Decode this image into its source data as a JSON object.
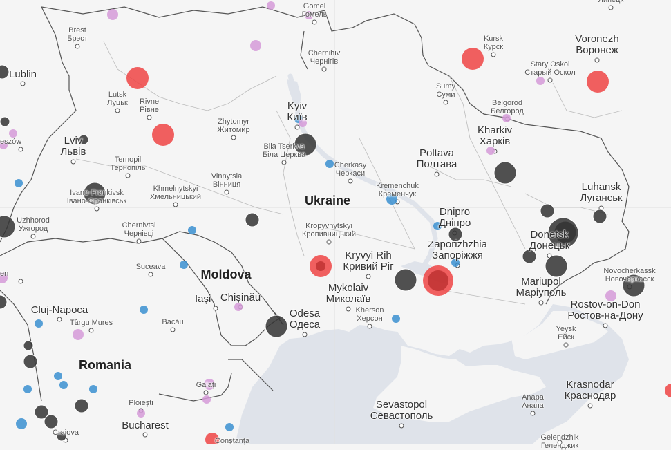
{
  "colors": {
    "land": "#f5f5f5",
    "sea": "#dfe3ea",
    "border": "#555555",
    "red": "#ee4444",
    "dark": "#333333",
    "blue": "#3a8fd0",
    "pink": "#d59ad8"
  },
  "countries": [
    {
      "key": "ukraine",
      "name": "Ukraine"
    },
    {
      "key": "moldova",
      "name": "Moldova"
    },
    {
      "key": "romania",
      "name": "Romania"
    }
  ],
  "cities": [
    {
      "key": "gomel",
      "l1": "Gomel",
      "l2": "Гомель",
      "size": "small"
    },
    {
      "key": "brest",
      "l1": "Brest",
      "l2": "Брэст",
      "size": "small"
    },
    {
      "key": "lublin",
      "l1": "Lublin",
      "l2": "",
      "size": "big"
    },
    {
      "key": "chernihiv",
      "l1": "Chernihiv",
      "l2": "Чернігів",
      "size": "small"
    },
    {
      "key": "kursk",
      "l1": "Kursk",
      "l2": "Курск",
      "size": "small"
    },
    {
      "key": "voronezh",
      "l1": "Voronezh",
      "l2": "Воронеж",
      "size": "big"
    },
    {
      "key": "stary-oskol",
      "l1": "Stary Oskol",
      "l2": "Старый Оскол",
      "size": "small"
    },
    {
      "key": "sumy",
      "l1": "Sumy",
      "l2": "Суми",
      "size": "small"
    },
    {
      "key": "lutsk",
      "l1": "Lutsk",
      "l2": "Луцьк",
      "size": "small"
    },
    {
      "key": "rivne",
      "l1": "Rivne",
      "l2": "Рівне",
      "size": "small"
    },
    {
      "key": "kyiv",
      "l1": "Kyiv",
      "l2": "Київ",
      "size": "big"
    },
    {
      "key": "belgorod",
      "l1": "Belgorod",
      "l2": "Белгород",
      "size": "small"
    },
    {
      "key": "zhytomyr",
      "l1": "Zhytomyr",
      "l2": "Житомир",
      "size": "small"
    },
    {
      "key": "kharkiv",
      "l1": "Kharkiv",
      "l2": "Харків",
      "size": "big"
    },
    {
      "key": "lviv",
      "l1": "Lviv",
      "l2": "Львів",
      "size": "big"
    },
    {
      "key": "bila-tserkva",
      "l1": "Bila Tserkva",
      "l2": "Біла Церква",
      "size": "small"
    },
    {
      "key": "poltava",
      "l1": "Poltava",
      "l2": "Полтава",
      "size": "big"
    },
    {
      "key": "ternopil",
      "l1": "Ternopil",
      "l2": "Тернопіль",
      "size": "small"
    },
    {
      "key": "cherkasy",
      "l1": "Cherkasy",
      "l2": "Черкаси",
      "size": "small"
    },
    {
      "key": "vinnytsia",
      "l1": "Vinnytsia",
      "l2": "Вінниця",
      "size": "small"
    },
    {
      "key": "ivano-frankivsk",
      "l1": "Ivano-Frankivsk",
      "l2": "Івано-Франківськ",
      "size": "small"
    },
    {
      "key": "khmelnytskyi",
      "l1": "Khmelnytskyi",
      "l2": "Хмельницький",
      "size": "small"
    },
    {
      "key": "kremenchuk",
      "l1": "Kremenchuk",
      "l2": "Кременчук",
      "size": "small"
    },
    {
      "key": "luhansk",
      "l1": "Luhansk",
      "l2": "Луганськ",
      "size": "big"
    },
    {
      "key": "dnipro",
      "l1": "Dnipro",
      "l2": "Дніпро",
      "size": "big"
    },
    {
      "key": "uzhhorod",
      "l1": "Uzhhorod",
      "l2": "Ужгород",
      "size": "small"
    },
    {
      "key": "chernivtsi",
      "l1": "Chernivtsi",
      "l2": "Чернівці",
      "size": "small"
    },
    {
      "key": "kropyvnytskyi",
      "l1": "Kropyvnytskyi",
      "l2": "Кропивницький",
      "size": "small"
    },
    {
      "key": "donetsk",
      "l1": "Donetsk",
      "l2": "Донецьк",
      "size": "big"
    },
    {
      "key": "zaporizhzhia",
      "l1": "Zaporizhzhia",
      "l2": "Запоріжжя",
      "size": "big"
    },
    {
      "key": "kryvyi-rih",
      "l1": "Kryvyi Rih",
      "l2": "Кривий Ріг",
      "size": "big"
    },
    {
      "key": "suceava",
      "l1": "Suceava",
      "l2": "",
      "size": "small"
    },
    {
      "key": "novocherkassk",
      "l1": "Novocherkassk",
      "l2": "Новочеркасск",
      "size": "small"
    },
    {
      "key": "mykolaiv",
      "l1": "Mykolaiv",
      "l2": "Миколаїв",
      "size": "big"
    },
    {
      "key": "mariupol",
      "l1": "Mariupol",
      "l2": "Маріуполь",
      "size": "big"
    },
    {
      "key": "iasi",
      "l1": "Iași",
      "l2": "",
      "size": "big"
    },
    {
      "key": "chisinau",
      "l1": "Chișinău",
      "l2": "",
      "size": "big"
    },
    {
      "key": "rostov",
      "l1": "Rostov-on-Don",
      "l2": "Ростов-на-Дону",
      "size": "big"
    },
    {
      "key": "cluj",
      "l1": "Cluj-Napoca",
      "l2": "",
      "size": "big"
    },
    {
      "key": "odesa",
      "l1": "Odesa",
      "l2": "Одеса",
      "size": "big"
    },
    {
      "key": "kherson",
      "l1": "Kherson",
      "l2": "Херсон",
      "size": "small"
    },
    {
      "key": "targu-mures",
      "l1": "Târgu Mureș",
      "l2": "",
      "size": "small"
    },
    {
      "key": "bacau",
      "l1": "Bacău",
      "l2": "",
      "size": "small"
    },
    {
      "key": "yeysk",
      "l1": "Yeysk",
      "l2": "Ейск",
      "size": "small"
    },
    {
      "key": "galati",
      "l1": "Galați",
      "l2": "",
      "size": "small"
    },
    {
      "key": "krasnodar",
      "l1": "Krasnodar",
      "l2": "Краснодар",
      "size": "big"
    },
    {
      "key": "sevastopol",
      "l1": "Sevastopol",
      "l2": "Севастополь",
      "size": "big"
    },
    {
      "key": "anapa",
      "l1": "Anapa",
      "l2": "Анапа",
      "size": "small"
    },
    {
      "key": "ploiesti",
      "l1": "Ploiești",
      "l2": "",
      "size": "small"
    },
    {
      "key": "bucharest",
      "l1": "Bucharest",
      "l2": "",
      "size": "big"
    },
    {
      "key": "craiova",
      "l1": "Craiova",
      "l2": "",
      "size": "small"
    },
    {
      "key": "constanta",
      "l1": "Constanța",
      "l2": "",
      "size": "small"
    },
    {
      "key": "gelendzhik",
      "l1": "Gelendzhik",
      "l2": "Геленджик",
      "size": "small"
    },
    {
      "key": "lypetsk",
      "l1": "Липецк",
      "l2": "",
      "size": "small"
    },
    {
      "key": "en-fragment",
      "l1": "en",
      "l2": "",
      "size": "small"
    },
    {
      "key": "eszow",
      "l1": "eszów",
      "l2": "",
      "size": "small"
    }
  ],
  "markers": [
    {
      "category": "red",
      "size": "large"
    },
    {
      "category": "red",
      "size": "large"
    },
    {
      "category": "red",
      "size": "large"
    },
    {
      "category": "red",
      "size": "large"
    },
    {
      "category": "red",
      "size": "medium"
    },
    {
      "category": "red",
      "size": "large"
    },
    {
      "category": "red",
      "size": "medium"
    },
    {
      "category": "red",
      "size": "xlarge"
    },
    {
      "category": "dark",
      "size": "medium"
    },
    {
      "category": "dark",
      "size": "small"
    },
    {
      "category": "dark",
      "size": "large"
    },
    {
      "category": "dark",
      "size": "large"
    },
    {
      "category": "dark",
      "size": "large"
    },
    {
      "category": "dark",
      "size": "medium"
    },
    {
      "category": "dark",
      "size": "large"
    },
    {
      "category": "dark",
      "size": "large"
    },
    {
      "category": "dark",
      "size": "medium"
    },
    {
      "category": "dark",
      "size": "xlarge"
    },
    {
      "category": "dark",
      "size": "medium"
    },
    {
      "category": "dark",
      "size": "medium"
    },
    {
      "category": "dark",
      "size": "large"
    },
    {
      "category": "dark",
      "size": "medium"
    },
    {
      "category": "dark",
      "size": "large"
    },
    {
      "category": "dark",
      "size": "large"
    },
    {
      "category": "dark",
      "size": "medium"
    },
    {
      "category": "dark",
      "size": "medium"
    },
    {
      "category": "dark",
      "size": "medium"
    },
    {
      "category": "dark",
      "size": "medium"
    },
    {
      "category": "dark",
      "size": "large"
    },
    {
      "category": "dark",
      "size": "medium"
    },
    {
      "category": "dark",
      "size": "small"
    },
    {
      "category": "dark",
      "size": "small"
    },
    {
      "category": "dark",
      "size": "small"
    },
    {
      "category": "blue",
      "size": "small"
    },
    {
      "category": "blue",
      "size": "small"
    },
    {
      "category": "blue",
      "size": "medium"
    },
    {
      "category": "blue",
      "size": "small"
    },
    {
      "category": "blue",
      "size": "small"
    },
    {
      "category": "blue",
      "size": "small"
    },
    {
      "category": "blue",
      "size": "small"
    },
    {
      "category": "blue",
      "size": "small"
    },
    {
      "category": "blue",
      "size": "small"
    },
    {
      "category": "blue",
      "size": "small"
    },
    {
      "category": "blue",
      "size": "small"
    },
    {
      "category": "blue",
      "size": "small"
    },
    {
      "category": "blue",
      "size": "small"
    },
    {
      "category": "blue",
      "size": "small"
    },
    {
      "category": "blue",
      "size": "small"
    },
    {
      "category": "blue",
      "size": "medium"
    },
    {
      "category": "blue",
      "size": "small"
    },
    {
      "category": "pink",
      "size": "medium"
    },
    {
      "category": "pink",
      "size": "small"
    },
    {
      "category": "pink",
      "size": "medium"
    },
    {
      "category": "pink",
      "size": "small"
    },
    {
      "category": "pink",
      "size": "small"
    },
    {
      "category": "pink",
      "size": "small"
    },
    {
      "category": "pink",
      "size": "small"
    },
    {
      "category": "pink",
      "size": "small"
    },
    {
      "category": "pink",
      "size": "small"
    },
    {
      "category": "pink",
      "size": "small"
    },
    {
      "category": "pink",
      "size": "medium"
    },
    {
      "category": "pink",
      "size": "medium"
    },
    {
      "category": "pink",
      "size": "medium"
    },
    {
      "category": "pink",
      "size": "small"
    },
    {
      "category": "pink",
      "size": "small"
    },
    {
      "category": "pink",
      "size": "medium"
    },
    {
      "category": "pink",
      "size": "small"
    }
  ]
}
